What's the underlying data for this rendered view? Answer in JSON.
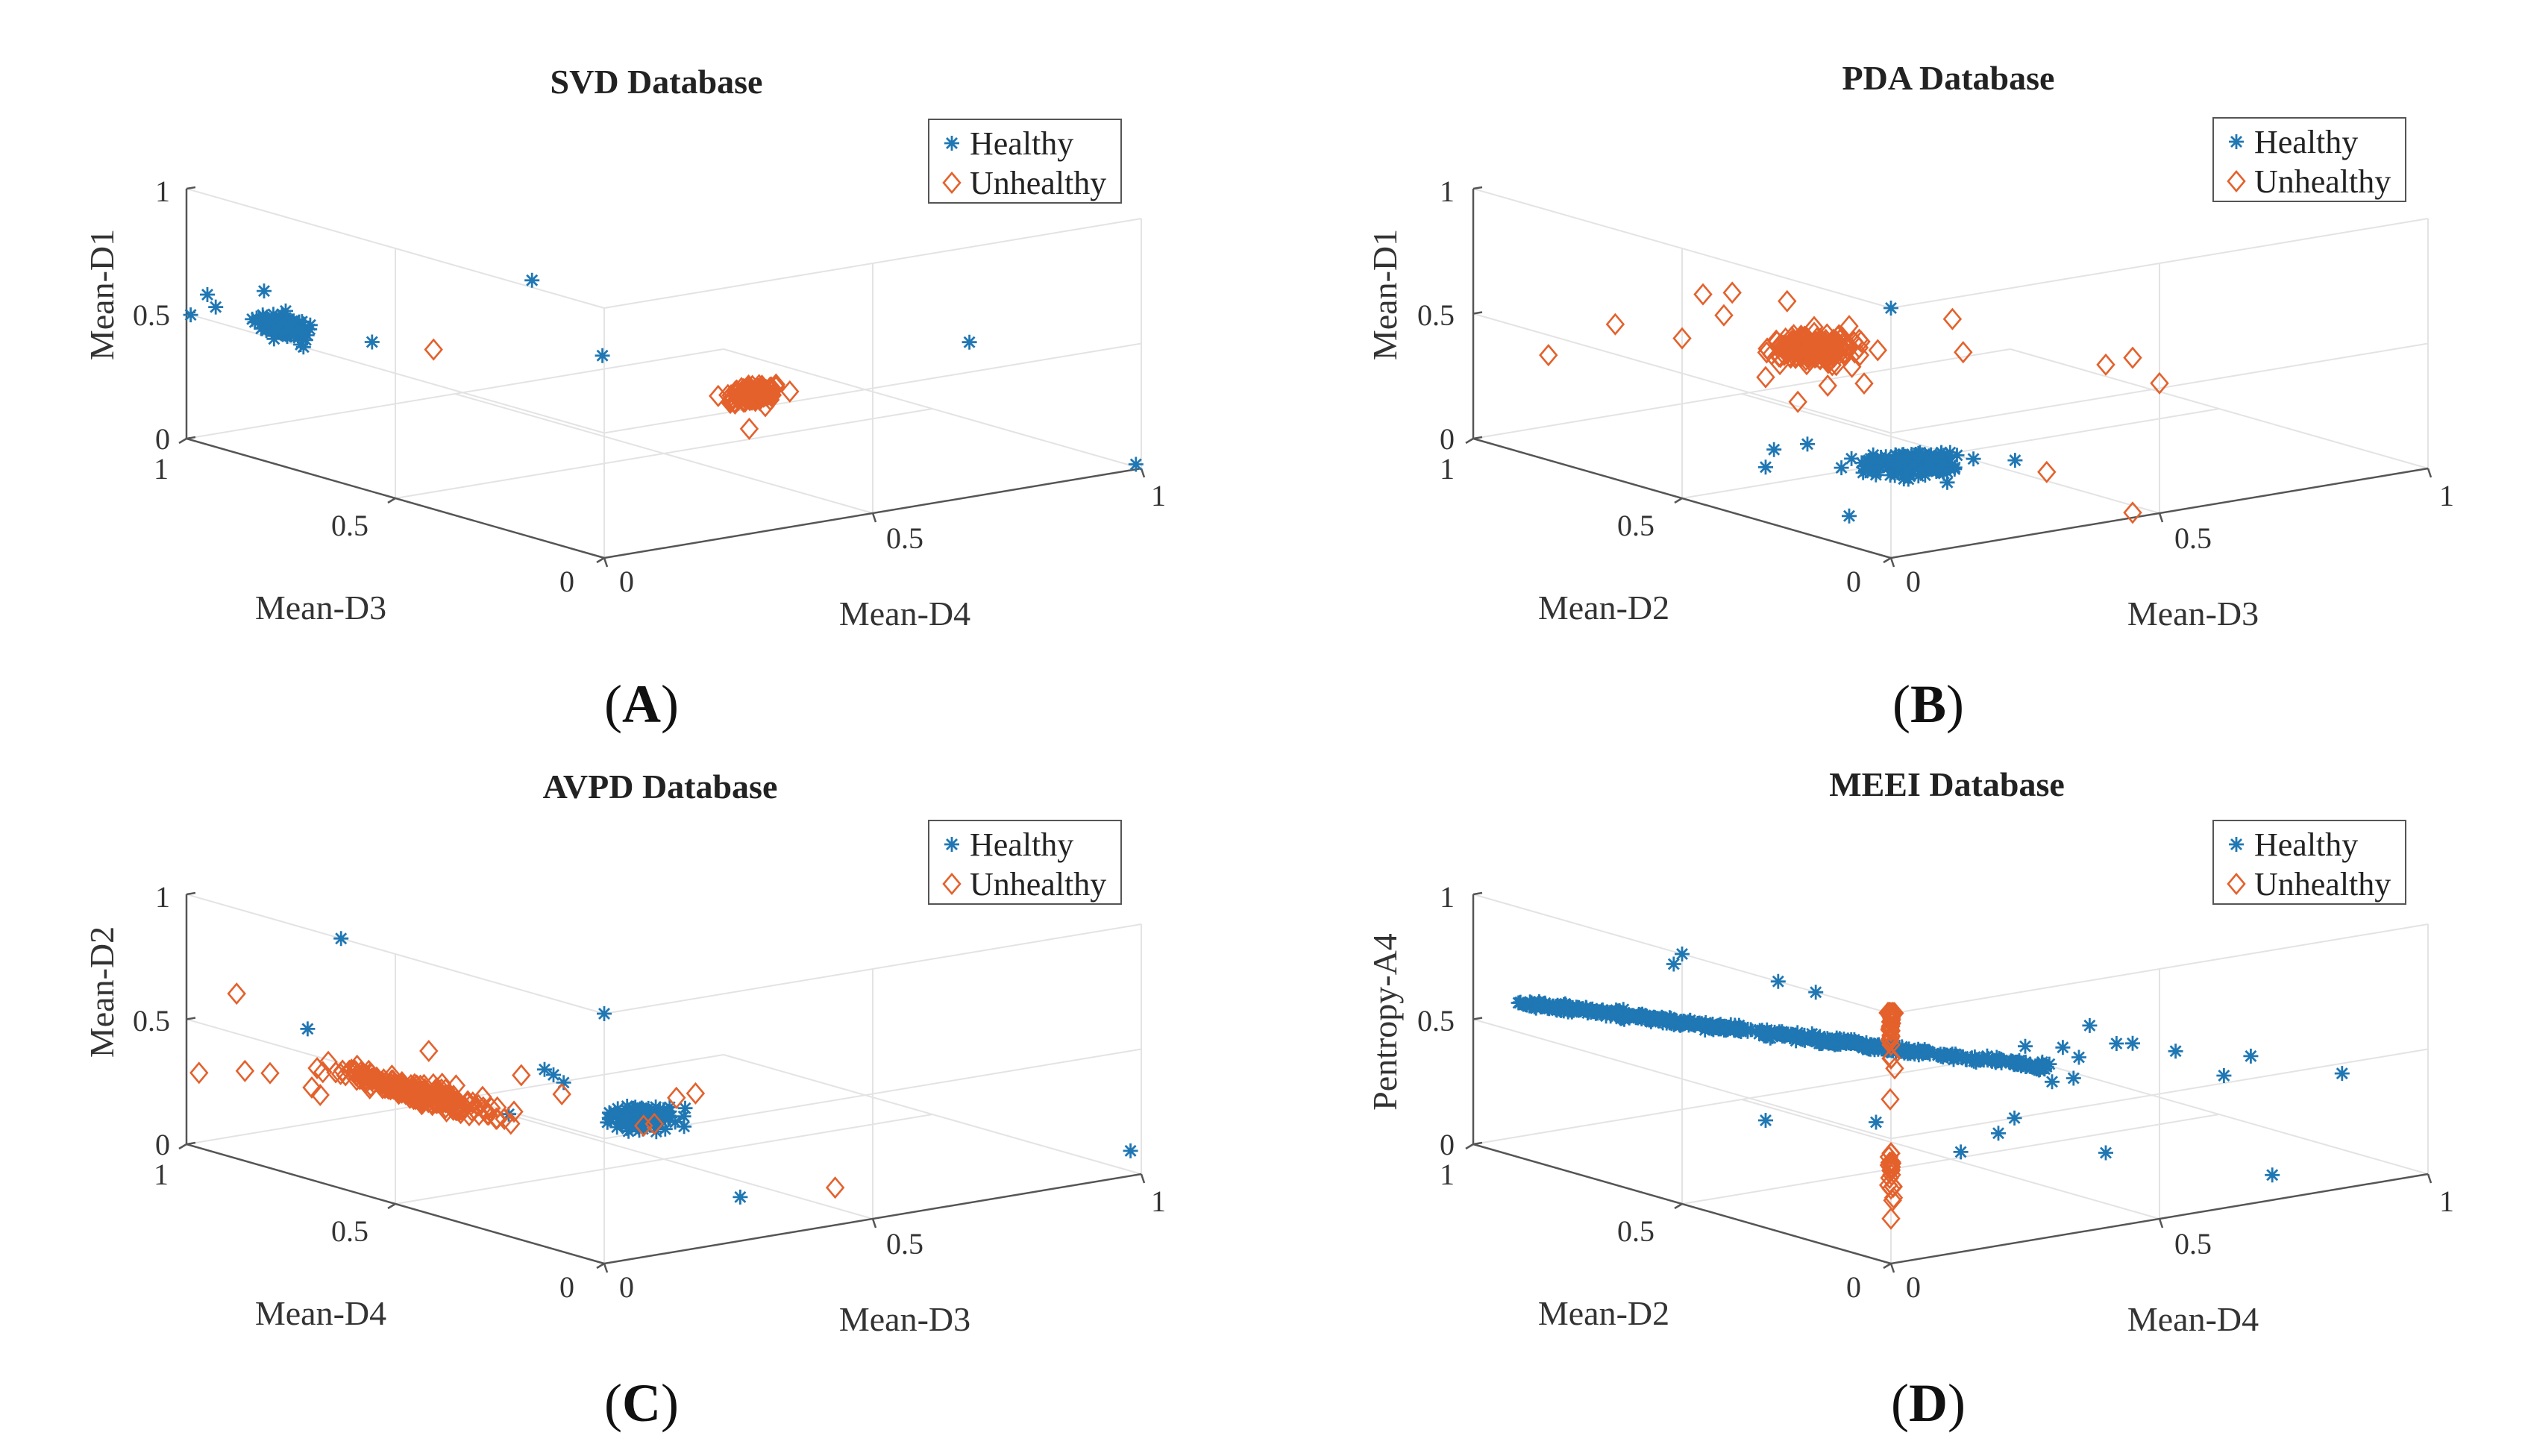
{
  "colors": {
    "healthy": "#1f77b4",
    "unhealthy": "#e4612c",
    "grid": "#e3e3e3",
    "axis": "#555555"
  },
  "chart_data": [
    {
      "type": "scatter",
      "title": "SVD Database",
      "panel_label": "A",
      "xlabel": "Mean-D4",
      "ylabel": "Mean-D3",
      "zlabel": "Mean-D1",
      "xlim": [
        0,
        1
      ],
      "ylim": [
        0,
        1
      ],
      "zlim": [
        0,
        1
      ],
      "grid": true,
      "legend_position": "top-right",
      "x_ticks": [
        "0",
        "0.5",
        "1"
      ],
      "y_ticks": [
        "0",
        "0.5",
        "1"
      ],
      "z_ticks": [
        "0",
        "0.5",
        "1"
      ],
      "series": [
        {
          "name": "Healthy",
          "marker": "asterisk",
          "clusters": [
            {
              "center": [
                0.0,
                0.78,
                0.55
              ],
              "spread": [
                0.02,
                0.025,
                0.015
              ],
              "count": 170
            }
          ],
          "points": [
            [
              0.0,
              0.99,
              0.5
            ],
            [
              0.0,
              0.93,
              0.56
            ],
            [
              0.0,
              0.95,
              0.6
            ],
            [
              0.05,
              0.62,
              0.55
            ],
            [
              0.06,
              0.25,
              0.97
            ],
            [
              0.09,
              0.12,
              0.72
            ],
            [
              0.68,
              0.0,
              0.62
            ],
            [
              0.99,
              0.0,
              0.02
            ],
            [
              0.02,
              0.84,
              0.66
            ],
            [
              0.0,
              0.72,
              0.5
            ]
          ]
        },
        {
          "name": "Unhealthy",
          "marker": "diamond",
          "clusters": [
            {
              "center": [
                0.28,
                0.0,
                0.55
              ],
              "spread": [
                0.02,
                0.015,
                0.015
              ],
              "count": 130
            }
          ],
          "points": [
            [
              0.04,
              0.46,
              0.6
            ],
            [
              0.27,
              0.0,
              0.42
            ],
            [
              0.3,
              0.0,
              0.5
            ]
          ]
        }
      ]
    },
    {
      "type": "scatter",
      "title": "PDA Database",
      "panel_label": "B",
      "xlabel": "Mean-D3",
      "ylabel": "Mean-D2",
      "zlabel": "Mean-D1",
      "xlim": [
        0,
        1
      ],
      "ylim": [
        0,
        1
      ],
      "zlim": [
        0,
        1
      ],
      "grid": true,
      "legend_position": "top-right",
      "x_ticks": [
        "0",
        "0.5",
        "1"
      ],
      "y_ticks": [
        "0",
        "0.5",
        "1"
      ],
      "z_ticks": [
        "0",
        "0.5",
        "1"
      ],
      "series": [
        {
          "name": "Healthy",
          "marker": "asterisk",
          "clusters": [
            {
              "center": [
                0.14,
                0.14,
                0.26
              ],
              "spread": [
                0.035,
                0.03,
                0.012
              ],
              "count": 220
            }
          ],
          "points": [
            [
              0.0,
              0.0,
              1.0
            ],
            [
              0.0,
              0.3,
              0.22
            ],
            [
              0.0,
              0.28,
              0.3
            ],
            [
              0.0,
              0.1,
              0.12
            ],
            [
              0.27,
              0.05,
              0.27
            ],
            [
              0.0,
              0.2,
              0.36
            ]
          ]
        },
        {
          "name": "Unhealthy",
          "marker": "diamond",
          "clusters": [
            {
              "center": [
                0.05,
                0.25,
                0.7
              ],
              "spread": [
                0.03,
                0.035,
                0.02
              ],
              "count": 200
            }
          ],
          "points": [
            [
              0.0,
              0.66,
              0.62
            ],
            [
              0.0,
              0.82,
              0.42
            ],
            [
              0.0,
              0.38,
              0.88
            ],
            [
              0.0,
              0.45,
              0.84
            ],
            [
              0.0,
              0.4,
              0.78
            ],
            [
              0.04,
              0.3,
              0.87
            ],
            [
              0.0,
              0.1,
              0.88
            ],
            [
              0.13,
              0.02,
              0.9
            ],
            [
              0.15,
              0.02,
              0.76
            ],
            [
              0.4,
              0.0,
              0.63
            ],
            [
              0.45,
              0.0,
              0.64
            ],
            [
              0.5,
              0.0,
              0.52
            ],
            [
              0.1,
              0.28,
              0.52
            ],
            [
              0.0,
              0.3,
              0.58
            ],
            [
              0.29,
              0.0,
              0.24
            ],
            [
              0.45,
              0.0,
              0.02
            ],
            [
              0.0,
              0.5,
              0.64
            ],
            [
              0.09,
              0.18,
              0.58
            ],
            [
              0.06,
              0.3,
              0.46
            ]
          ]
        }
      ]
    },
    {
      "type": "scatter",
      "title": "AVPD Database",
      "panel_label": "C",
      "xlabel": "Mean-D3",
      "ylabel": "Mean-D4",
      "zlabel": "Mean-D2",
      "xlim": [
        0,
        1
      ],
      "ylim": [
        0,
        1
      ],
      "zlim": [
        0,
        1
      ],
      "grid": true,
      "legend_position": "top-right",
      "x_ticks": [
        "0",
        "0.5",
        "1"
      ],
      "y_ticks": [
        "0",
        "0.5",
        "1"
      ],
      "z_ticks": [
        "0",
        "0.5",
        "1"
      ],
      "series": [
        {
          "name": "Healthy",
          "marker": "asterisk",
          "clusters": [
            {
              "center": [
                0.17,
                0.13,
                0.46
              ],
              "spread": [
                0.025,
                0.02,
                0.015
              ],
              "count": 120
            }
          ],
          "points": [
            [
              0.0,
              0.63,
              1.0
            ],
            [
              0.0,
              0.0,
              1.0
            ],
            [
              0.0,
              0.71,
              0.6
            ],
            [
              0.98,
              0.0,
              0.1
            ],
            [
              0.3,
              0.06,
              0.13
            ],
            [
              0.04,
              0.28,
              0.45
            ],
            [
              0.06,
              0.22,
              0.65
            ],
            [
              0.08,
              0.2,
              0.6
            ],
            [
              0.1,
              0.25,
              0.6
            ]
          ]
        },
        {
          "name": "Unhealthy",
          "marker": "diamond",
          "clusters": [
            {
              "center": [
                0.0,
                0.45,
                0.46
              ],
              "spread": [
                0.02,
                0.08,
                0.015
              ],
              "count": 240
            }
          ],
          "points": [
            [
              0.0,
              0.88,
              0.66
            ],
            [
              0.0,
              0.97,
              0.3
            ],
            [
              0.0,
              0.86,
              0.36
            ],
            [
              0.0,
              0.8,
              0.38
            ],
            [
              0.0,
              0.7,
              0.37
            ],
            [
              0.0,
              0.68,
              0.35
            ],
            [
              0.0,
              0.58,
              0.48
            ],
            [
              0.14,
              0.06,
              0.48
            ],
            [
              0.17,
              0.0,
              0.62
            ],
            [
              0.15,
              0.02,
              0.6
            ],
            [
              0.43,
              0.0,
              0.15
            ],
            [
              0.12,
              0.06,
              0.48
            ],
            [
              0.04,
              0.25,
              0.62
            ],
            [
              0.0,
              0.42,
              0.65
            ],
            [
              0.03,
              0.14,
              0.6
            ]
          ]
        }
      ]
    },
    {
      "type": "scatter",
      "title": "MEEI Database",
      "panel_label": "D",
      "xlabel": "Mean-D4",
      "ylabel": "Mean-D2",
      "zlabel": "Pentropy-A4",
      "xlim": [
        0,
        1
      ],
      "ylim": [
        0,
        1
      ],
      "zlim": [
        0,
        1
      ],
      "grid": true,
      "legend_position": "top-right",
      "x_ticks": [
        "0",
        "0.5",
        "1"
      ],
      "y_ticks": [
        "0",
        "0.5",
        "1"
      ],
      "z_ticks": [
        "0",
        "0.5",
        "1"
      ],
      "series": [
        {
          "name": "Healthy",
          "marker": "asterisk",
          "lines": [
            {
              "from": [
                0.0,
                0.89,
                0.62
              ],
              "to": [
                0.29,
                0.0,
                0.68
              ],
              "count": 600,
              "jitter": 0.008
            }
          ],
          "points": [
            [
              0.0,
              0.5,
              1.0
            ],
            [
              0.0,
              0.52,
              0.95
            ],
            [
              0.0,
              0.27,
              1.0
            ],
            [
              0.0,
              0.18,
              1.0
            ],
            [
              0.37,
              0.0,
              0.82
            ],
            [
              0.42,
              0.0,
              0.73
            ],
            [
              0.45,
              0.0,
              0.72
            ],
            [
              0.53,
              0.0,
              0.66
            ],
            [
              0.62,
              0.0,
              0.53
            ],
            [
              0.67,
              0.0,
              0.59
            ],
            [
              0.84,
              0.0,
              0.46
            ],
            [
              0.71,
              0.0,
              0.1
            ],
            [
              0.4,
              0.0,
              0.3
            ],
            [
              0.35,
              0.0,
              0.7
            ],
            [
              0.32,
              0.0,
              0.75
            ],
            [
              0.3,
              0.0,
              0.62
            ],
            [
              0.23,
              0.0,
              0.5
            ],
            [
              0.2,
              0.0,
              0.45
            ],
            [
              0.13,
              0.0,
              0.4
            ],
            [
              0.05,
              0.1,
              0.5
            ],
            [
              0.0,
              0.3,
              0.43
            ],
            [
              0.25,
              0.0,
              0.78
            ],
            [
              0.34,
              0.0,
              0.62
            ]
          ]
        },
        {
          "name": "Unhealthy",
          "marker": "diamond",
          "clusters": [
            {
              "center": [
                0.0,
                0.0,
                1.0
              ],
              "spread": [
                0.003,
                0.003,
                0.11
              ],
              "count": 60
            },
            {
              "center": [
                0.0,
                0.0,
                0.38
              ],
              "spread": [
                0.004,
                0.004,
                0.05
              ],
              "count": 20
            }
          ],
          "points": [
            [
              0.0,
              0.0,
              0.18
            ],
            [
              0.0,
              0.0,
              0.3
            ]
          ]
        }
      ]
    }
  ]
}
